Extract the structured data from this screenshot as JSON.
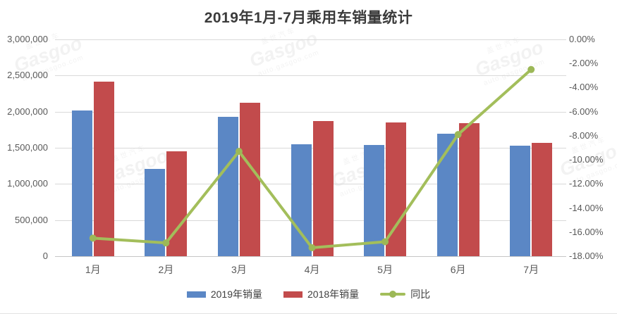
{
  "watermark": {
    "cn": "盖世汽车",
    "brand": "Gasgoo",
    "url": "auto.gasgoo.com"
  },
  "colors": {
    "bar_2019": "#5b87c5",
    "bar_2018": "#c24b4c",
    "line_yoy": "#a3be5b",
    "marker_yoy": "#9cb857",
    "gridline": "#d9d9d9",
    "axis_text": "#595959",
    "title_text": "#3b3b3b"
  },
  "chart_data": {
    "type": "bar",
    "subtype": "grouped bars with secondary-axis line (combo)",
    "title": "2019年1月-7月乘用车销量统计",
    "categories": [
      "1月",
      "2月",
      "3月",
      "4月",
      "5月",
      "6月",
      "7月"
    ],
    "series": [
      {
        "name": "2019年销量",
        "type": "bar",
        "axis": "left",
        "color": "#5b87c5",
        "values": [
          2020000,
          1205000,
          1925000,
          1550000,
          1540000,
          1695000,
          1530000
        ]
      },
      {
        "name": "2018年销量",
        "type": "bar",
        "axis": "left",
        "color": "#c24b4c",
        "values": [
          2420000,
          1450000,
          2120000,
          1870000,
          1855000,
          1845000,
          1570000
        ]
      },
      {
        "name": "同比",
        "type": "line",
        "axis": "right",
        "color": "#a3be5b",
        "values_pct": [
          -16.5,
          -16.9,
          -9.3,
          -17.3,
          -16.8,
          -7.9,
          -2.5
        ]
      }
    ],
    "left_axis": {
      "min": 0,
      "max": 3000000,
      "step": 500000,
      "tick_labels": [
        "3,000,000",
        "2,500,000",
        "2,000,000",
        "1,500,000",
        "1,000,000",
        "500,000",
        "0"
      ]
    },
    "right_axis": {
      "min": -18,
      "max": 0,
      "step": 2,
      "tick_labels": [
        "0.00%",
        "-2.00%",
        "-4.00%",
        "-6.00%",
        "-8.00%",
        "-10.00%",
        "-12.00%",
        "-14.00%",
        "-16.00%",
        "-18.00%"
      ]
    },
    "legend_position": "bottom",
    "grid": true
  }
}
